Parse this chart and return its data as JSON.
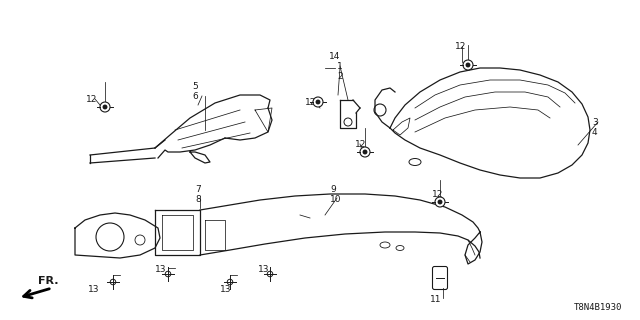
{
  "background_color": "#ffffff",
  "diagram_code": "T8N4B1930",
  "line_color": "#1a1a1a",
  "text_color": "#1a1a1a",
  "fontsize_label": 6.5,
  "fontsize_code": 6.5,
  "fontsize_fr": 8,
  "lw_main": 0.9,
  "lw_thin": 0.55,
  "lw_leader": 0.55
}
